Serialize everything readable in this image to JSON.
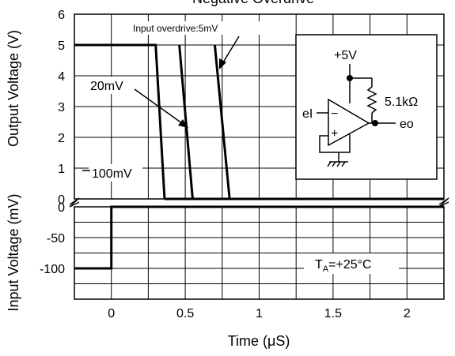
{
  "chart_data": [
    {
      "type": "line",
      "title": "Negative Overdrive",
      "ylabel": "Output Voltage (V)",
      "xlim": [
        -0.25,
        2.25
      ],
      "ylim": [
        0,
        6
      ],
      "y_ticks": [
        "0",
        "1",
        "2",
        "3",
        "4",
        "5",
        "6"
      ],
      "grid": true,
      "series": [
        {
          "name": "100mV",
          "points": [
            [
              -0.25,
              5
            ],
            [
              0.3,
              5
            ],
            [
              0.36,
              0
            ]
          ]
        },
        {
          "name": "20mV",
          "points": [
            [
              0.46,
              5
            ],
            [
              0.55,
              0
            ]
          ]
        },
        {
          "name": "Input overdrive:5mV",
          "points": [
            [
              0.7,
              5
            ],
            [
              0.8,
              0
            ]
          ]
        }
      ],
      "baseline_segment": [
        [
          0.36,
          0
        ],
        [
          2.25,
          0
        ]
      ],
      "annotations": {
        "schematic_supply": "+5V",
        "schematic_resistor": "5.1kΩ",
        "schematic_input": "eI",
        "schematic_output": "eo",
        "schematic_minus": "−",
        "schematic_plus": "+"
      }
    },
    {
      "type": "line",
      "ylabel": "Input Voltage (mV)",
      "xlabel": "Time (μS)",
      "xlim": [
        -0.25,
        2.25
      ],
      "ylim": [
        -150,
        0
      ],
      "y_ticks": [
        "0",
        "-50",
        "-100"
      ],
      "x_ticks": [
        "0",
        "0.5",
        "1",
        "1.5",
        "2"
      ],
      "grid": true,
      "series": [
        {
          "points": [
            [
              -0.25,
              -100
            ],
            [
              0,
              -100
            ],
            [
              0,
              0
            ],
            [
              2.25,
              0
            ]
          ]
        }
      ],
      "annotations": {
        "temperature_T": "T",
        "temperature_sub": "A",
        "temperature_value": "=+25°C"
      }
    }
  ]
}
